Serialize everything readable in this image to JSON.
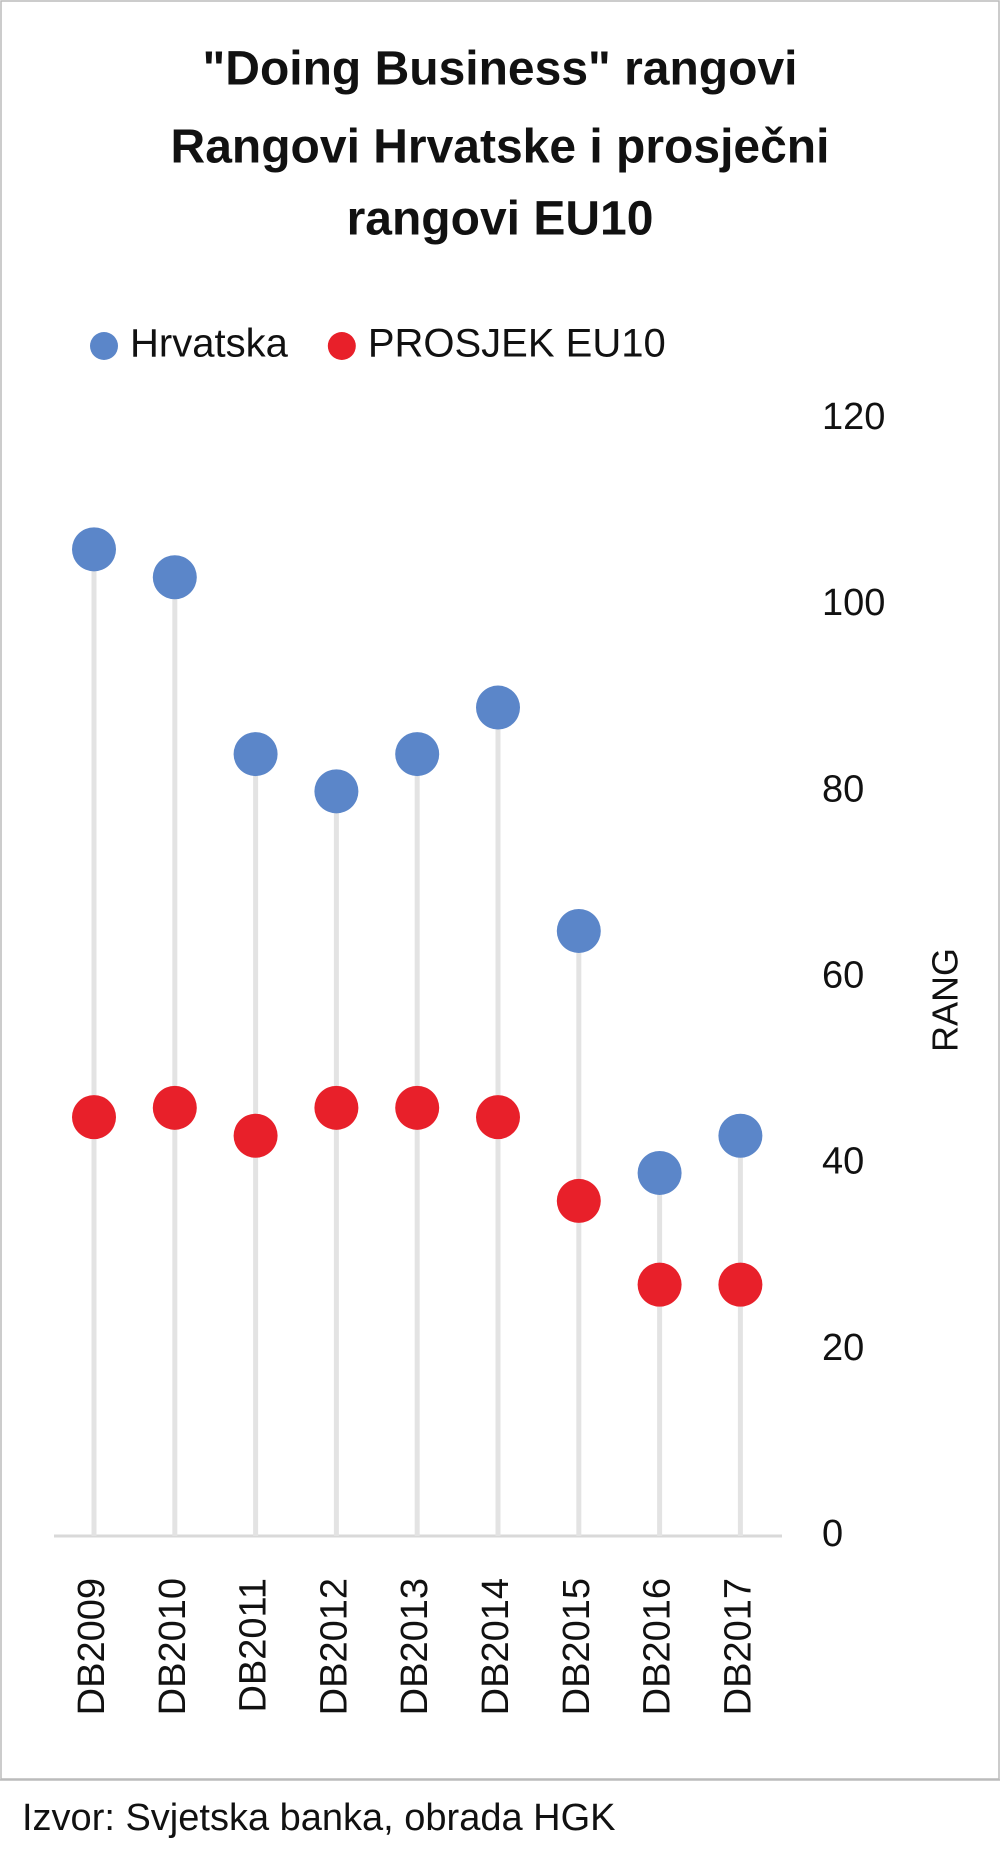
{
  "chart_data": {
    "type": "dot",
    "title": [
      "\"Doing Business\" rangovi",
      "Rangovi Hrvatske  i prosječni",
      "rangovi EU10"
    ],
    "categories": [
      "DB2009",
      "DB2010",
      "DB2011",
      "DB2012",
      "DB2013",
      "DB2014",
      "DB2015",
      "DB2016",
      "DB2017"
    ],
    "series": [
      {
        "name": "Hrvatska",
        "color": "#5b86c9",
        "values": [
          106,
          103,
          84,
          80,
          84,
          89,
          65,
          39,
          43
        ]
      },
      {
        "name": "PROSJEK EU10",
        "color": "#e8202a",
        "values": [
          45,
          46,
          43,
          46,
          46,
          45,
          36,
          27,
          27
        ]
      }
    ],
    "y_label": "RANG",
    "ylim": [
      0,
      120
    ],
    "yticks": [
      0,
      20,
      40,
      60,
      80,
      100,
      120
    ],
    "source": "Izvor: Svjetska banka, obrada HGK"
  }
}
